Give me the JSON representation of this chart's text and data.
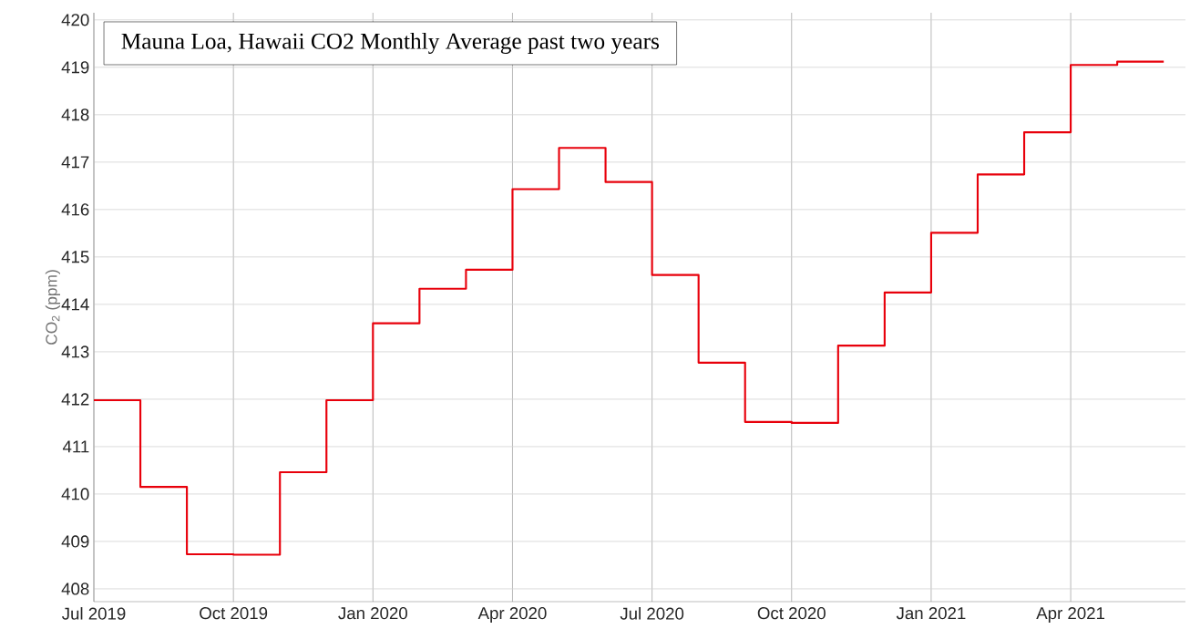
{
  "chart_data": {
    "type": "step",
    "title": "Mauna Loa, Hawaii CO2 Monthly Average past two years",
    "ylabel": "CO$_{2}$ (ppm)",
    "x": [
      "2019-07",
      "2019-08",
      "2019-09",
      "2019-10",
      "2019-11",
      "2019-12",
      "2020-01",
      "2020-02",
      "2020-03",
      "2020-04",
      "2020-05",
      "2020-06",
      "2020-07",
      "2020-08",
      "2020-09",
      "2020-10",
      "2020-11",
      "2020-12",
      "2021-01",
      "2021-02",
      "2021-03",
      "2021-04",
      "2021-05",
      "2021-06"
    ],
    "values": [
      411.98,
      410.15,
      408.73,
      408.72,
      410.46,
      411.98,
      413.6,
      414.33,
      414.73,
      416.43,
      417.3,
      416.58,
      414.62,
      412.77,
      411.52,
      411.5,
      413.13,
      414.25,
      415.51,
      416.74,
      417.63,
      419.05,
      419.12,
      419.12
    ],
    "color": "#e8000b",
    "xlim": [
      "2019-07",
      "2021-06-15"
    ],
    "ylim": [
      407.73,
      420.15
    ],
    "xticks": [
      {
        "value": "2019-07",
        "label": "Jul 2019"
      },
      {
        "value": "2019-10",
        "label": "Oct 2019"
      },
      {
        "value": "2020-01",
        "label": "Jan 2020"
      },
      {
        "value": "2020-04",
        "label": "Apr 2020"
      },
      {
        "value": "2020-07",
        "label": "Jul 2020"
      },
      {
        "value": "2020-10",
        "label": "Oct 2020"
      },
      {
        "value": "2021-01",
        "label": "Jan 2021"
      },
      {
        "value": "2021-04",
        "label": "Apr 2021"
      }
    ],
    "yticks": [
      408,
      409,
      410,
      411,
      412,
      413,
      414,
      415,
      416,
      417,
      418,
      419,
      420
    ],
    "grid": true,
    "marker": "none"
  }
}
